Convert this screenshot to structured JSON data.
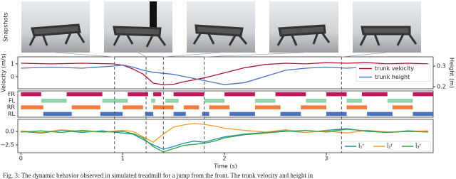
{
  "snapshots_label": "Snapshots",
  "events": [
    0.92,
    1.23,
    1.4,
    1.8,
    3.15
  ],
  "caption": "Fig. 3: The dynamic behavior observed in simulated treadmill for a jump from the front. The trunk velocity and height in",
  "chart_data": [
    {
      "type": "line",
      "ylabel": "Velocity (m/s)",
      "y2label": "Height (m)",
      "xlim": [
        -0.03,
        4.05
      ],
      "ylim": [
        -0.95,
        1.55
      ],
      "yticks": [
        0,
        1
      ],
      "y2lim": [
        0.19,
        0.345
      ],
      "y2ticks": [
        0.2,
        0.3
      ],
      "legend": "center right",
      "x": [
        0,
        0.3,
        0.6,
        0.9,
        1.0,
        1.1,
        1.2,
        1.3,
        1.4,
        1.5,
        1.6,
        1.8,
        2.0,
        2.2,
        2.4,
        2.6,
        2.8,
        3.0,
        3.2,
        3.4,
        3.6,
        3.8,
        4.0
      ],
      "series": [
        {
          "name": "trunk velocity",
          "color": "#b0143c",
          "values": [
            1.05,
            1.0,
            1.05,
            1.0,
            0.9,
            0.6,
            0.2,
            -0.5,
            -0.65,
            -0.6,
            -0.4,
            -0.1,
            0.3,
            0.7,
            0.95,
            1.05,
            1.0,
            1.1,
            1.05,
            1.1,
            1.0,
            1.05,
            1.0
          ]
        },
        {
          "name": "trunk height",
          "color": "#4a72c0",
          "axis": "y2",
          "values": [
            0.29,
            0.295,
            0.29,
            0.3,
            0.305,
            0.295,
            0.28,
            0.27,
            0.265,
            0.26,
            0.25,
            0.23,
            0.21,
            0.22,
            0.25,
            0.28,
            0.29,
            0.295,
            0.29,
            0.295,
            0.29,
            0.295,
            0.29
          ]
        }
      ]
    },
    {
      "type": "gait",
      "xlim": [
        -0.03,
        4.05
      ],
      "legs": [
        {
          "label": "FR",
          "color": "#c2185b",
          "intervals": [
            [
              0,
              0.2
            ],
            [
              0.45,
              0.8
            ],
            [
              1.05,
              1.25
            ],
            [
              1.3,
              1.38
            ],
            [
              1.5,
              1.8
            ],
            [
              2.0,
              2.3
            ],
            [
              2.5,
              2.8
            ],
            [
              3.0,
              3.2
            ],
            [
              3.35,
              3.6
            ],
            [
              3.85,
              4.05
            ]
          ]
        },
        {
          "label": "FL",
          "color": "#8fd4a8",
          "intervals": [
            [
              0.2,
              0.45
            ],
            [
              0.8,
              1.05
            ],
            [
              1.28,
              1.32
            ],
            [
              1.42,
              1.55
            ],
            [
              1.8,
              2.0
            ],
            [
              2.3,
              2.5
            ],
            [
              2.8,
              3.0
            ],
            [
              3.2,
              3.35
            ],
            [
              3.6,
              3.85
            ]
          ]
        },
        {
          "label": "RR",
          "color": "#f07b3f",
          "intervals": [
            [
              0,
              0.22
            ],
            [
              0.5,
              0.78
            ],
            [
              1.0,
              1.2
            ],
            [
              1.3,
              1.5
            ],
            [
              1.6,
              1.75
            ],
            [
              1.85,
              2.05
            ],
            [
              2.3,
              2.55
            ],
            [
              2.75,
              3.0
            ],
            [
              3.2,
              3.4
            ],
            [
              3.65,
              3.85
            ]
          ]
        },
        {
          "label": "RL",
          "color": "#4a72c0",
          "intervals": [
            [
              0.22,
              0.5
            ],
            [
              0.78,
              1.0
            ],
            [
              1.22,
              1.3
            ],
            [
              1.5,
              1.62
            ],
            [
              1.78,
              1.85
            ],
            [
              2.05,
              2.3
            ],
            [
              2.55,
              2.75
            ],
            [
              3.0,
              3.2
            ],
            [
              3.4,
              3.65
            ],
            [
              3.85,
              4.05
            ]
          ]
        }
      ]
    },
    {
      "type": "line",
      "xlabel": "Time (s)",
      "xlim": [
        -0.03,
        4.05
      ],
      "xticks": [
        0,
        1,
        2,
        3
      ],
      "ylim": [
        -3.95,
        2.24
      ],
      "yticks": [
        {
          "value": 0,
          "label": "0.0"
        },
        {
          "value": -2.5,
          "label": "−2.5"
        }
      ],
      "legend": "lower right",
      "x": [
        0,
        0.2,
        0.4,
        0.6,
        0.8,
        1.0,
        1.1,
        1.2,
        1.3,
        1.4,
        1.5,
        1.6,
        1.7,
        1.8,
        1.9,
        2.0,
        2.2,
        2.4,
        2.6,
        2.8,
        3.0,
        3.2,
        3.4,
        3.6,
        3.8,
        4.0
      ],
      "series": [
        {
          "name": "Î₁ᶠ",
          "color": "#1f8fa8",
          "values": [
            0,
            -0.3,
            0.2,
            -0.2,
            0.1,
            -0.3,
            -0.5,
            -1.5,
            -2.5,
            -3.3,
            -2.8,
            -2.2,
            -1.8,
            -2.0,
            -1.5,
            -1.0,
            -0.5,
            -0.2,
            0.1,
            -0.2,
            0.2,
            0.5,
            0,
            -0.2,
            0.1,
            0
          ]
        },
        {
          "name": "Î₂ᶠ",
          "color": "#f39c2a",
          "values": [
            0.1,
            -0.2,
            0.3,
            0,
            -0.1,
            0.2,
            0,
            -1.0,
            -2.0,
            -0.5,
            0.8,
            1.2,
            1.5,
            1.3,
            1.0,
            0.6,
            0.2,
            -0.1,
            0.3,
            -0.2,
            0.1,
            -0.3,
            0.2,
            -0.1,
            0,
            0.1
          ]
        },
        {
          "name": "Î₃ᶠ",
          "color": "#3aa04a",
          "values": [
            -0.1,
            0.1,
            -0.2,
            0.2,
            -0.1,
            0,
            -0.4,
            -1.2,
            -2.8,
            -3.8,
            -3.2,
            -2.6,
            -2.4,
            -2.2,
            -1.8,
            -1.2,
            -0.6,
            -0.3,
            0,
            0.2,
            -0.1,
            0.4,
            0.1,
            -0.2,
            0,
            -0.1
          ]
        }
      ]
    }
  ]
}
